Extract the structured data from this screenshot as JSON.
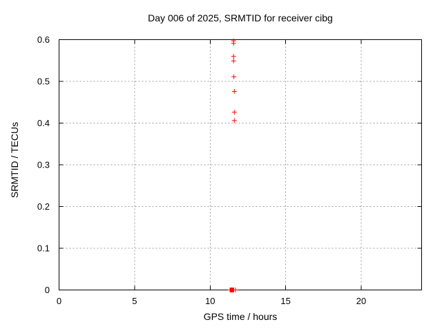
{
  "chart_data": {
    "type": "scatter",
    "title": "Day 006 of 2025, SRMTID for receiver cibg",
    "xlabel": "GPS time / hours",
    "ylabel": "SRMTID / TECUs",
    "xlim": [
      0,
      24
    ],
    "ylim": [
      0,
      0.6
    ],
    "xticks": [
      0,
      5,
      10,
      15,
      20
    ],
    "xtick_labels": [
      "0",
      "5",
      "10",
      "15",
      "20"
    ],
    "yticks": [
      0,
      0.1,
      0.2,
      0.3,
      0.4,
      0.5,
      0.6
    ],
    "ytick_labels": [
      "0",
      "0.1",
      "0.2",
      "0.3",
      "0.4",
      "0.5",
      "0.6"
    ],
    "grid": true,
    "grid_style": "dotted",
    "legend": "none",
    "series": [
      {
        "name": "SRMTID",
        "marker": "plus",
        "color": "#ff0000",
        "points": [
          [
            11.55,
            0.597
          ],
          [
            11.55,
            0.591
          ],
          [
            11.55,
            0.56
          ],
          [
            11.55,
            0.549
          ],
          [
            11.57,
            0.511
          ],
          [
            11.6,
            0.476
          ],
          [
            11.6,
            0.426
          ],
          [
            11.6,
            0.406
          ],
          [
            11.32,
            0.0
          ],
          [
            11.35,
            0.0
          ],
          [
            11.38,
            0.0
          ],
          [
            11.41,
            0.0
          ],
          [
            11.44,
            0.0
          ],
          [
            11.47,
            0.0
          ],
          [
            11.5,
            0.0
          ],
          [
            11.53,
            0.0
          ],
          [
            11.56,
            0.0
          ],
          [
            11.68,
            0.0
          ]
        ]
      }
    ]
  },
  "colors": {
    "marker": "#ff0000",
    "grid": "#9b9b9b",
    "border": "#000000",
    "background": "#ffffff"
  }
}
